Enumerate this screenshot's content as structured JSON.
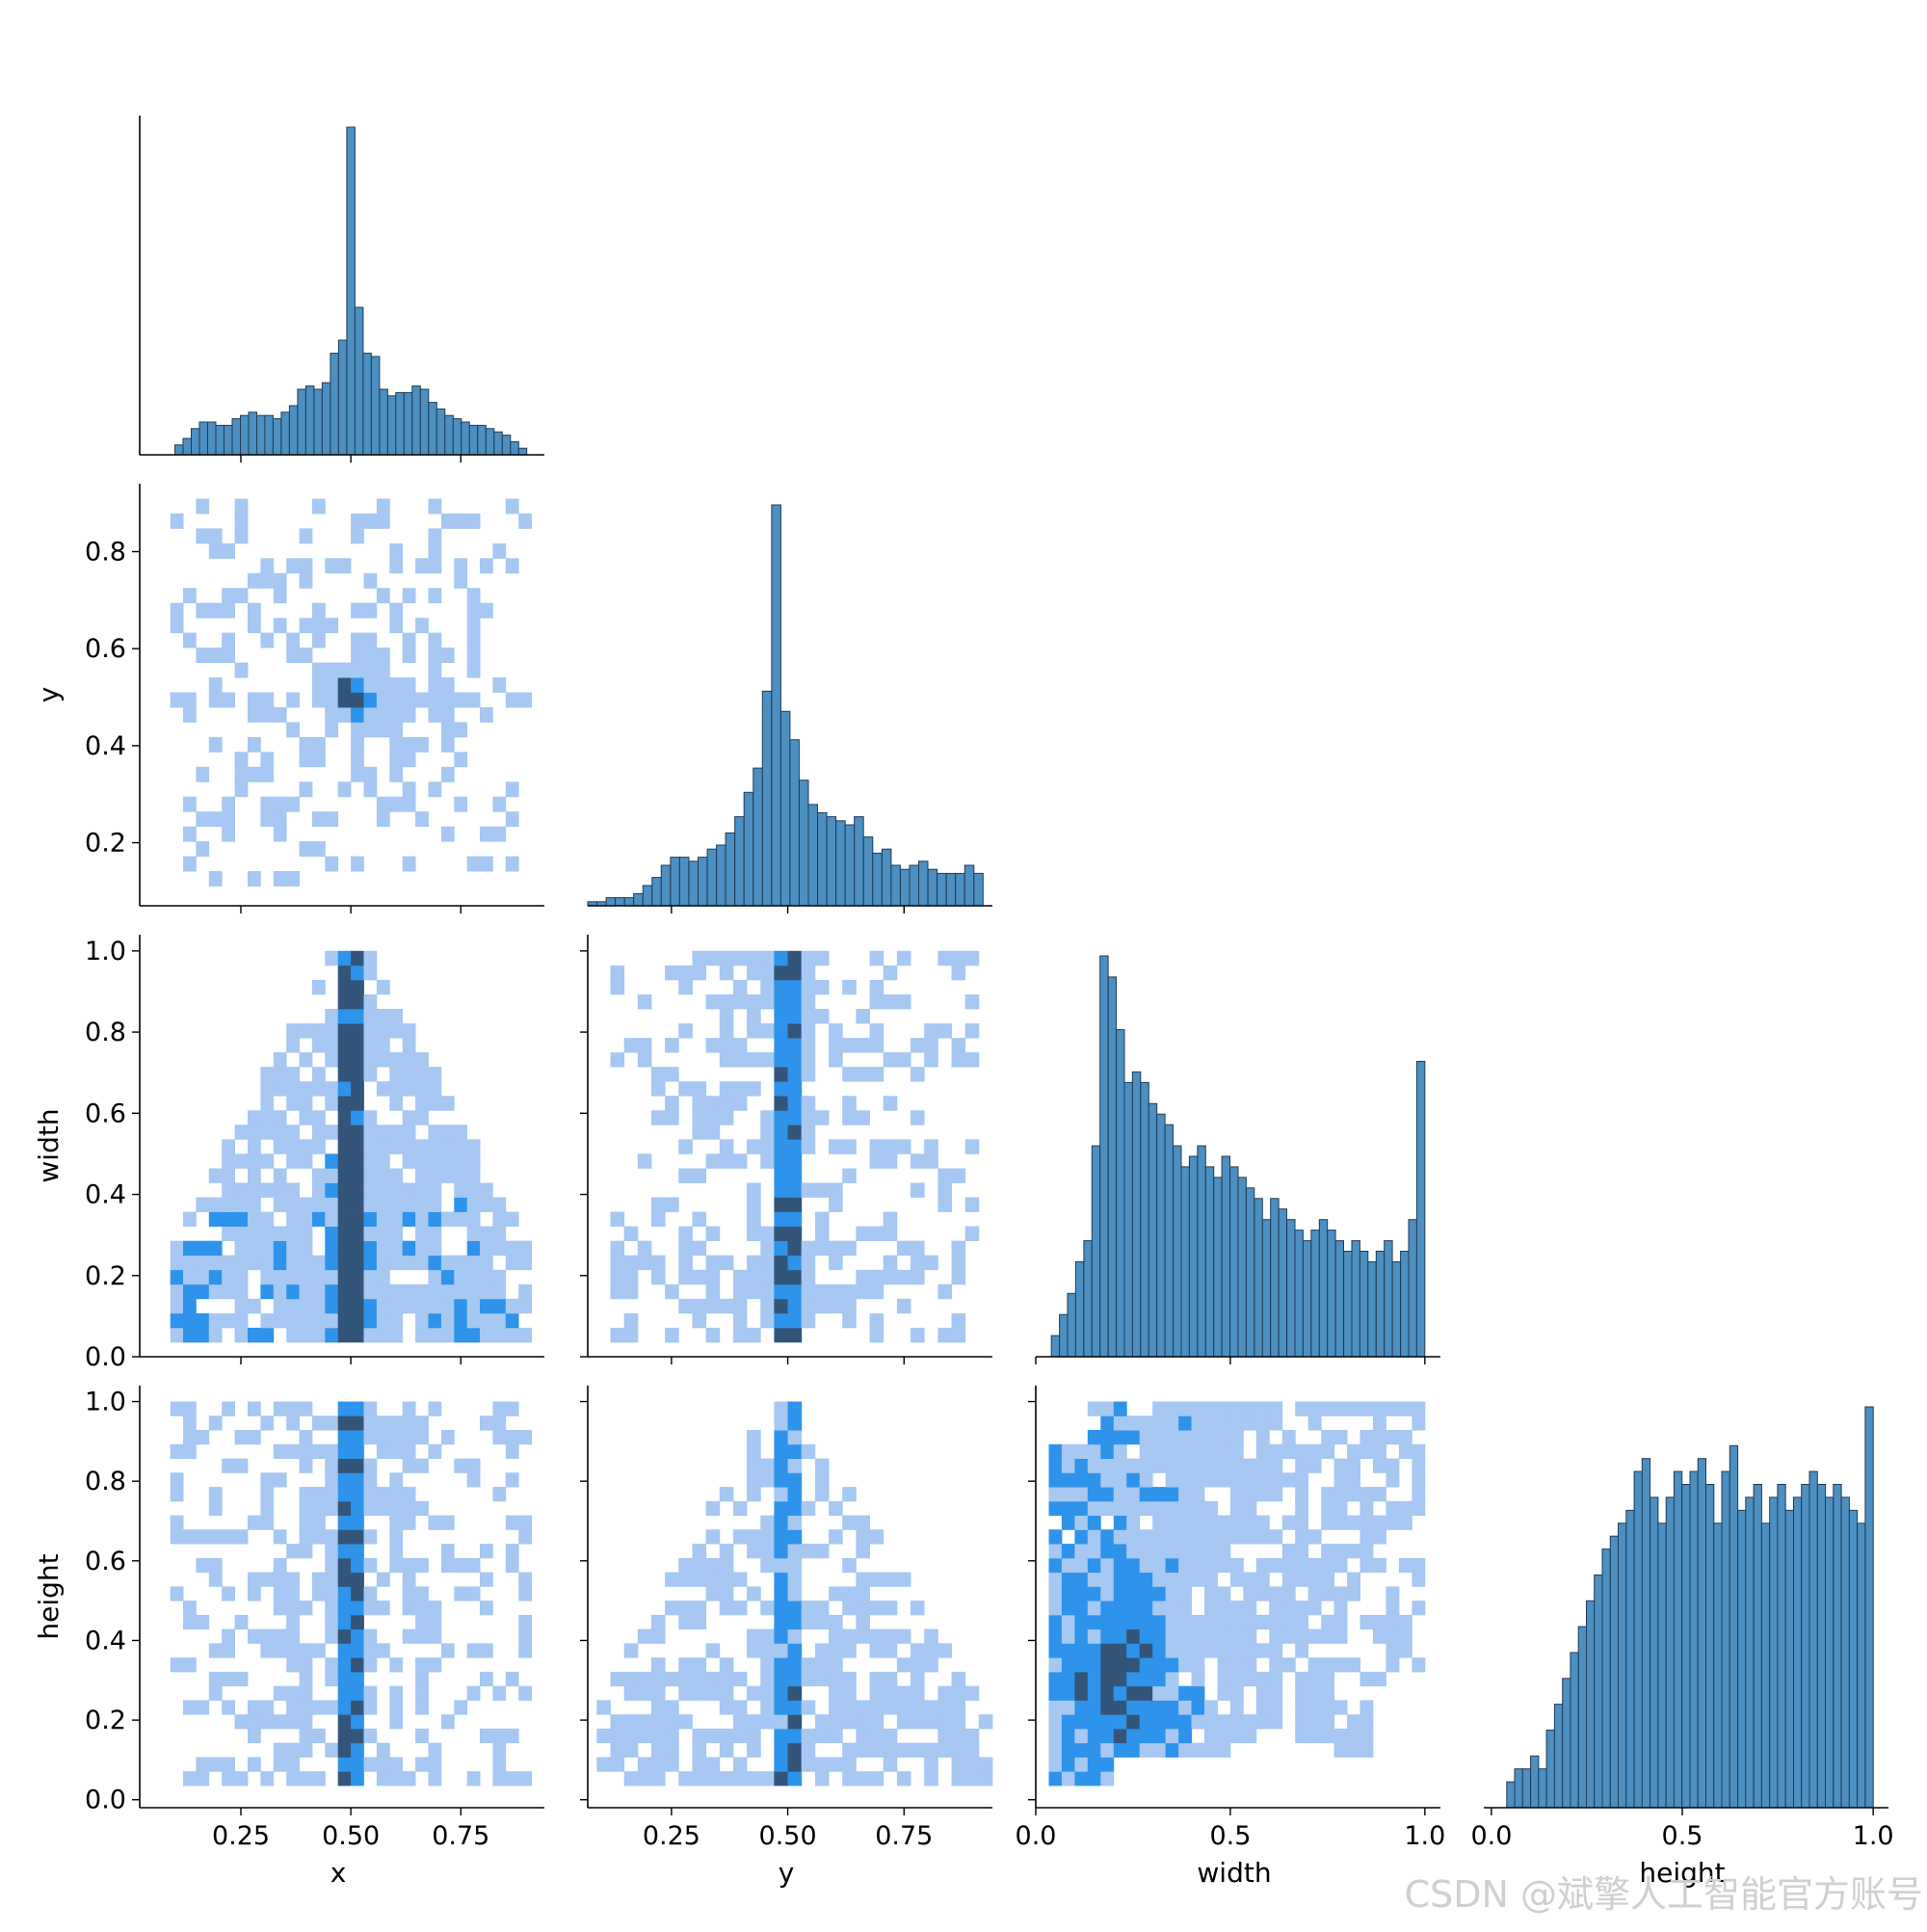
{
  "watermark": "CSDN @斌擎人工智能官方账号",
  "colors": {
    "bar_fill": "#4c8fc0",
    "bar_edge": "#1f3b57",
    "heat_light": "#a6c8f2",
    "heat_mid": "#2e93ea",
    "heat_dark": "#33557a"
  },
  "chart_data": {
    "type": "pairplot",
    "variables": [
      "x",
      "y",
      "width",
      "height"
    ],
    "corner": true,
    "diag_kind": "hist",
    "off_diag_kind": "hist2d",
    "ranges": {
      "x": [
        0.02,
        0.94
      ],
      "y": [
        0.07,
        0.94
      ],
      "width": [
        0.0,
        1.04
      ],
      "height": [
        -0.02,
        1.04
      ]
    },
    "ticks": {
      "x": {
        "values": [
          0.25,
          0.5,
          0.75
        ],
        "labels": [
          "0.25",
          "0.50",
          "0.75"
        ]
      },
      "y": {
        "values": [
          0.25,
          0.5,
          0.75
        ],
        "labels": [
          "0.25",
          "0.50",
          "0.75"
        ],
        "row_values": [
          0.2,
          0.4,
          0.6,
          0.8
        ],
        "row_labels": [
          "0.2",
          "0.4",
          "0.6",
          "0.8"
        ]
      },
      "width": {
        "values": [
          0.0,
          0.5,
          1.0
        ],
        "labels": [
          "0.0",
          "0.5",
          "1.0"
        ],
        "row_values": [
          0.0,
          0.2,
          0.4,
          0.6,
          0.8,
          1.0
        ],
        "row_labels": [
          "0.0",
          "0.2",
          "0.4",
          "0.6",
          "0.8",
          "1.0"
        ]
      },
      "height": {
        "values": [
          0.0,
          0.5,
          1.0
        ],
        "labels": [
          "0.0",
          "0.5",
          "1.0"
        ],
        "row_values": [
          0.0,
          0.2,
          0.4,
          0.6,
          0.8,
          1.0
        ],
        "row_labels": [
          "0.0",
          "0.2",
          "0.4",
          "0.6",
          "0.8",
          "1.0"
        ]
      }
    },
    "histograms": {
      "x": {
        "bin_start": 0.1,
        "bin_end": 0.9,
        "counts": [
          3,
          5,
          8,
          10,
          10,
          9,
          9,
          11,
          12,
          13,
          12,
          12,
          11,
          13,
          15,
          20,
          21,
          20,
          22,
          31,
          35,
          100,
          45,
          31,
          30,
          20,
          18,
          19,
          19,
          21,
          20,
          16,
          14,
          12,
          11,
          10,
          9,
          9,
          8,
          7,
          6,
          4,
          2
        ]
      },
      "y": {
        "bin_start": 0.07,
        "bin_end": 0.92,
        "counts": [
          1,
          1,
          2,
          2,
          2,
          3,
          5,
          7,
          10,
          12,
          12,
          11,
          12,
          14,
          15,
          18,
          22,
          28,
          34,
          53,
          99,
          48,
          41,
          31,
          25,
          23,
          22,
          21,
          20,
          22,
          17,
          13,
          14,
          10,
          9,
          10,
          11,
          9,
          8,
          8,
          8,
          10,
          8
        ]
      },
      "width": {
        "bin_start": 0.04,
        "bin_end": 1.0,
        "counts": [
          2,
          4,
          6,
          9,
          11,
          20,
          38,
          36,
          31,
          26,
          27,
          26,
          24,
          23,
          22,
          20,
          18,
          19,
          20,
          18,
          17,
          19,
          18,
          17,
          16,
          15,
          13,
          15,
          14,
          13,
          12,
          11,
          12,
          13,
          12,
          11,
          10,
          11,
          10,
          9,
          10,
          11,
          9,
          10,
          13,
          28
        ]
      },
      "height": {
        "bin_start": 0.04,
        "bin_end": 1.0,
        "counts": [
          2,
          3,
          3,
          4,
          3,
          6,
          8,
          10,
          12,
          14,
          16,
          18,
          20,
          21,
          22,
          23,
          26,
          27,
          24,
          22,
          24,
          26,
          25,
          26,
          27,
          25,
          22,
          26,
          28,
          23,
          24,
          25,
          22,
          24,
          25,
          23,
          24,
          25,
          26,
          25,
          24,
          25,
          24,
          23,
          22,
          31
        ]
      }
    },
    "pairs": [
      {
        "x": "x",
        "y": "y",
        "pattern": "central peak at (0.50, 0.50), light scatter over 0.10–0.90 × 0.10–0.92"
      },
      {
        "x": "x",
        "y": "width",
        "pattern": "triangle: width ≤ 2·min(x, 1−x), dense column at x ≈ 0.50"
      },
      {
        "x": "y",
        "y": "width",
        "pattern": "dense column at y ≈ 0.50, sparse light cells elsewhere"
      },
      {
        "x": "x",
        "y": "height",
        "pattern": "dense column at x ≈ 0.50, broad light band 0.10–0.90"
      },
      {
        "x": "y",
        "y": "height",
        "pattern": "triangle: height ≤ 2·min(y, 1−y), dense column at y ≈ 0.50"
      },
      {
        "x": "width",
        "y": "height",
        "pattern": "densest at small width (0.1–0.3) with height 0.2–0.4, cut-off lower-right corner"
      }
    ]
  }
}
